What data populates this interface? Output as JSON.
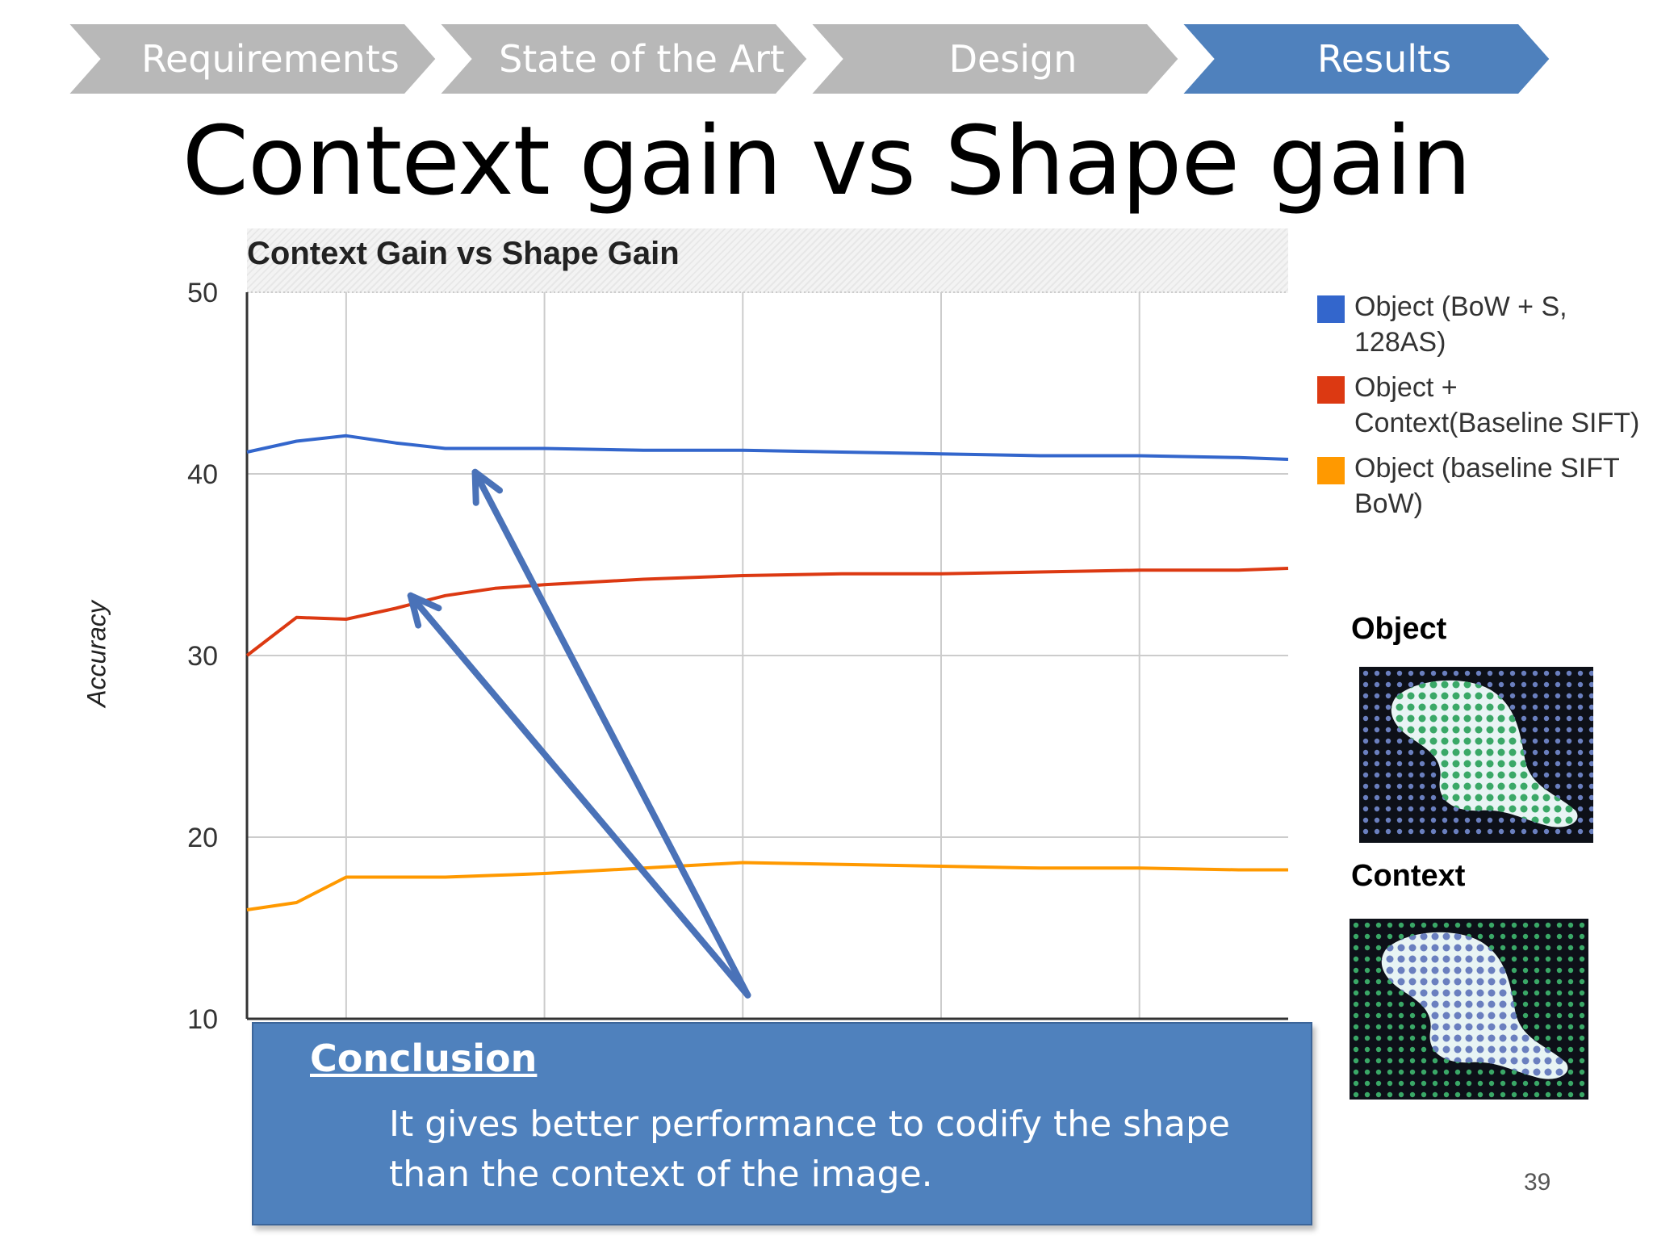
{
  "nav": {
    "items": [
      {
        "label": "Requirements",
        "active": false
      },
      {
        "label": "State of the Art",
        "active": false
      },
      {
        "label": "Design",
        "active": false
      },
      {
        "label": "Results",
        "active": true
      }
    ],
    "inactive_color": "#b8b8b8",
    "active_color": "#4f81bd"
  },
  "slide": {
    "title": "Context gain vs Shape gain",
    "page_number": "39"
  },
  "chart_data": {
    "type": "line",
    "title": "Context Gain vs Shape Gain",
    "ylabel": "Accuracy",
    "xlabel": "",
    "ylim": [
      10,
      50
    ],
    "yticks": [
      10,
      20,
      30,
      40,
      50
    ],
    "grid": true,
    "legend_position": "right",
    "x": [
      0,
      0.5,
      1,
      1.5,
      2,
      2.5,
      3,
      4,
      5,
      6,
      7,
      8,
      9,
      10,
      10.5
    ],
    "series": [
      {
        "name": "Object (BoW + S, 128AS)",
        "color": "#3366cc",
        "values": [
          41.2,
          41.8,
          42.1,
          41.7,
          41.4,
          41.4,
          41.4,
          41.3,
          41.3,
          41.2,
          41.1,
          41.0,
          41.0,
          40.9,
          40.8
        ]
      },
      {
        "name": "Object + Context(Baseline SIFT)",
        "color": "#dc3912",
        "values": [
          30.0,
          32.1,
          32.0,
          32.6,
          33.3,
          33.7,
          33.9,
          34.2,
          34.4,
          34.5,
          34.5,
          34.6,
          34.7,
          34.7,
          34.8
        ]
      },
      {
        "name": "Object (baseline SIFT BoW)",
        "color": "#ff9900",
        "values": [
          16.0,
          16.4,
          17.8,
          17.8,
          17.8,
          17.9,
          18.0,
          18.3,
          18.6,
          18.5,
          18.4,
          18.3,
          18.3,
          18.2,
          18.2
        ]
      }
    ],
    "annotation_arrows": {
      "color": "#4a72b8",
      "from_x": 5.05,
      "from_y": 11.3,
      "targets": [
        [
          2.3,
          40.1
        ],
        [
          1.65,
          33.3
        ]
      ]
    }
  },
  "side_panel": {
    "object_label": "Object",
    "context_label": "Context",
    "thumb_colors": {
      "background": "#0d1018",
      "shape": "#e8f4f4",
      "dot_green": "#3aa867",
      "dot_blue": "#6a7fbf"
    }
  },
  "conclusion": {
    "title": "Conclusion",
    "text": "It gives better performance to codify the shape than the context of the image."
  }
}
